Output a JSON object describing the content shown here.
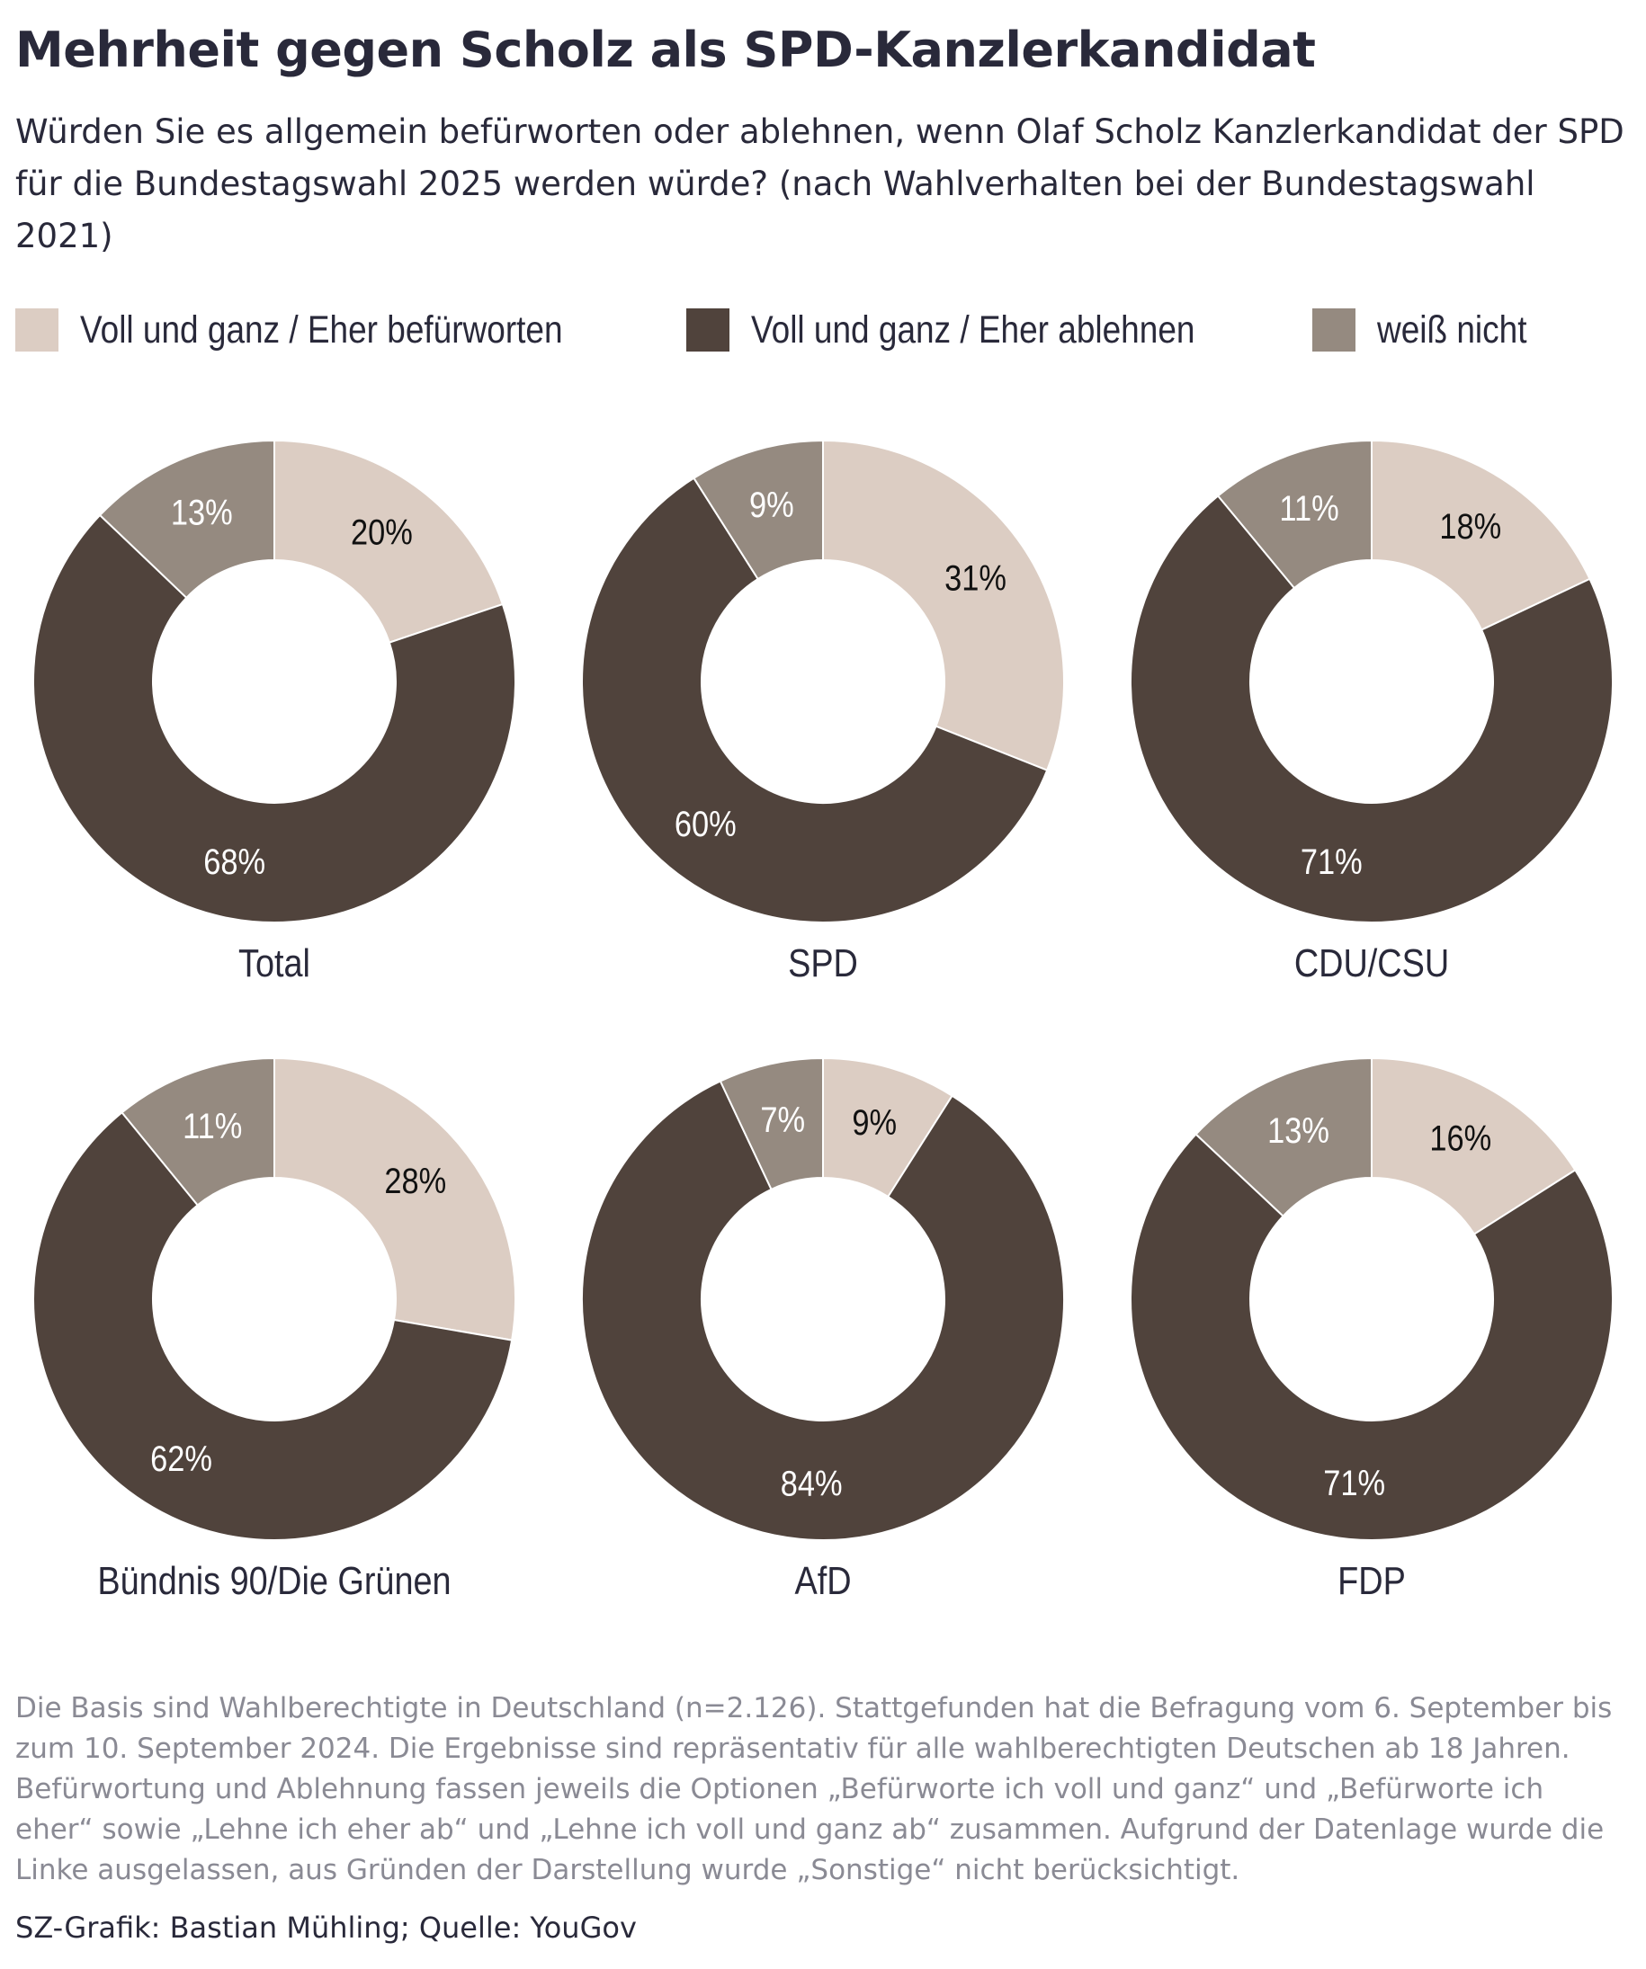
{
  "title": "Mehrheit gegen Scholz als SPD-Kanzlerkandidat",
  "subtitle": "Würden Sie es allgemein befürworten oder ablehnen, wenn Olaf Scholz Kanzlerkandidat der SPD für die Bundestagswahl 2025 werden würde? (nach Wahlverhalten bei der Bundestagswahl 2021)",
  "legend": [
    {
      "label": "Voll und ganz / Eher befürworten",
      "color": "#dccdc3"
    },
    {
      "label": "Voll und ganz / Eher ablehnen",
      "color": "#50433c"
    },
    {
      "label": "weiß nicht",
      "color": "#958a80"
    }
  ],
  "chart_data": {
    "type": "donut",
    "categories": [
      "Voll und ganz / Eher befürworten",
      "Voll und ganz / Eher ablehnen",
      "weiß nicht"
    ],
    "colors": [
      "#dccdc3",
      "#50433c",
      "#958a80"
    ],
    "label_colors": [
      "#111111",
      "#ffffff",
      "#ffffff"
    ],
    "unit": "%",
    "charts": [
      {
        "name": "Total",
        "values": [
          20,
          68,
          13
        ]
      },
      {
        "name": "SPD",
        "values": [
          31,
          60,
          9
        ]
      },
      {
        "name": "CDU/CSU",
        "values": [
          18,
          71,
          11
        ]
      },
      {
        "name": "Bündnis 90/Die Grünen",
        "values": [
          28,
          62,
          11
        ]
      },
      {
        "name": "AfD",
        "values": [
          9,
          84,
          7
        ]
      },
      {
        "name": "FDP",
        "values": [
          16,
          71,
          13
        ]
      }
    ]
  },
  "footnote": "Die Basis sind Wahlberechtigte in Deutschland (n=2.126). Stattgefunden hat die Befragung vom 6. September bis zum 10. September 2024. Die Ergebnisse sind repräsentativ für alle wahlberechtigten Deutschen ab 18 Jahren. Befürwortung und Ablehnung fassen jeweils die Optionen „Befürworte ich voll und ganz“ und „Befürworte ich eher“ sowie „Lehne ich eher ab“ und „Lehne ich voll und ganz ab“ zusammen. Aufgrund der Datenlage wurde die Linke ausgelassen, aus Gründen der Darstellung wurde „Sonstige“ nicht berücksichtigt.",
  "credit": "SZ-Grafik: Bastian Mühling; Quelle: YouGov"
}
